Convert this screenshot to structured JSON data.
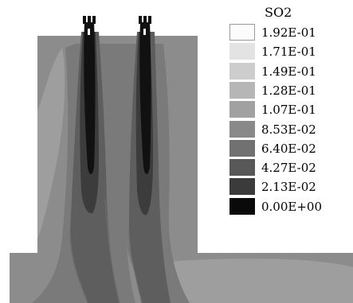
{
  "legend": {
    "title": "SO2",
    "levels": [
      {
        "label": "1.92E-01",
        "color": "#fbfbfb"
      },
      {
        "label": "1.71E-01",
        "color": "#e3e3e3"
      },
      {
        "label": "1.49E-01",
        "color": "#cdcdcd"
      },
      {
        "label": "1.28E-01",
        "color": "#b6b6b6"
      },
      {
        "label": "1.07E-01",
        "color": "#a1a1a1"
      },
      {
        "label": "8.53E-02",
        "color": "#898989"
      },
      {
        "label": "6.40E-02",
        "color": "#717171"
      },
      {
        "label": "4.27E-02",
        "color": "#585858"
      },
      {
        "label": "2.13E-02",
        "color": "#3b3b3b"
      },
      {
        "label": "0.00E+00",
        "color": "#0a0a0a"
      }
    ]
  },
  "plot": {
    "colors": {
      "base": "#8c8c8c",
      "light": "#9e9e9e",
      "mid": "#7a7a7a",
      "dark": "#5e5e5e",
      "darker": "#3c3c3c",
      "core": "#111111",
      "edge": "#6d6d6d"
    }
  }
}
